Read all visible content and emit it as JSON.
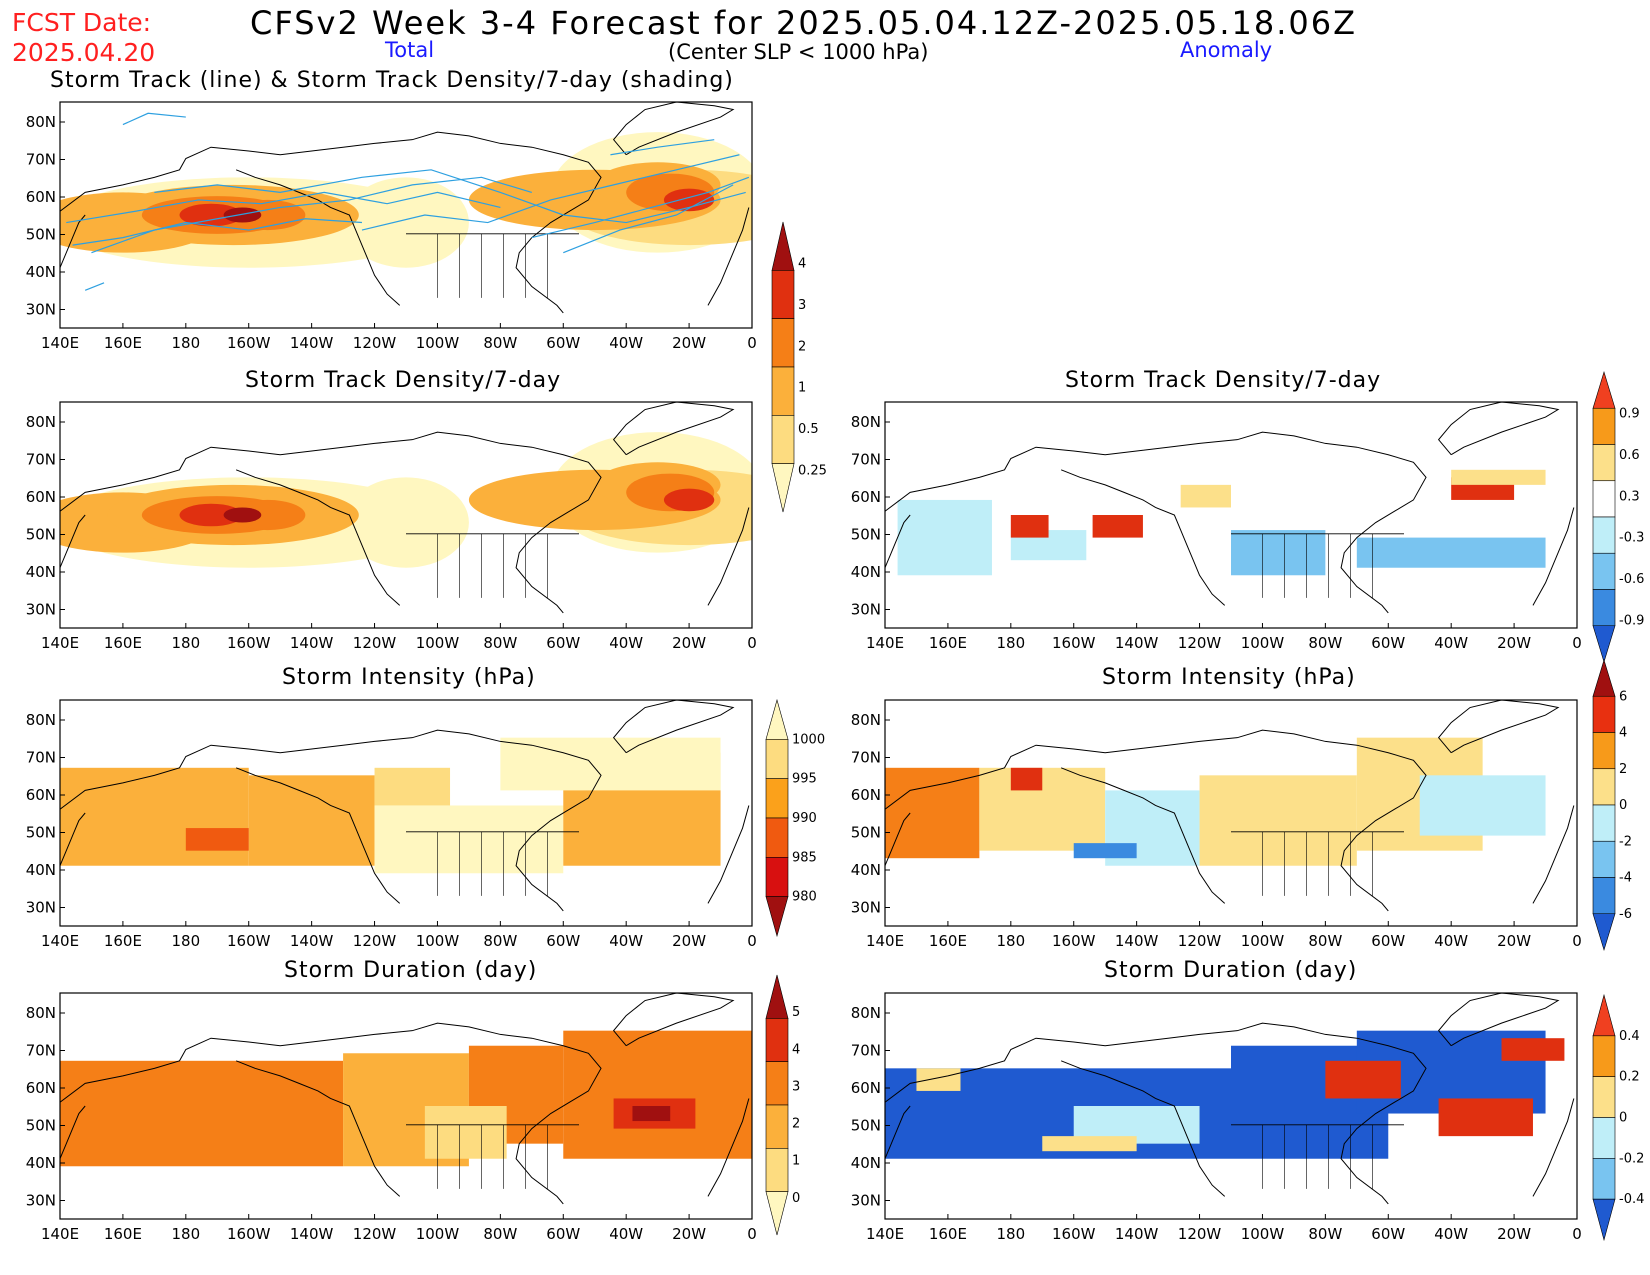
{
  "header": {
    "fcst_label": "FCST Date:",
    "fcst_date": "2025.04.20",
    "title": "CFSv2 Week 3-4 Forecast for 2025.05.04.12Z-2025.05.18.06Z",
    "subtitle": "(Center SLP < 1000 hPa)",
    "total_label": "Total",
    "anomaly_label": "Anomaly"
  },
  "axes": {
    "lon_labels": [
      "140E",
      "160E",
      "180",
      "160W",
      "140W",
      "120W",
      "100W",
      "80W",
      "60W",
      "40W",
      "20W",
      "0"
    ],
    "lat_labels": [
      "80N",
      "70N",
      "60N",
      "50N",
      "40N",
      "30N"
    ]
  },
  "panels": {
    "track": {
      "title": "Storm Track (line) & Storm Track Density/7-day (shading)"
    },
    "density_total": {
      "title": "Storm Track Density/7-day"
    },
    "density_anom": {
      "title": "Storm Track Density/7-day"
    },
    "intensity_total": {
      "title": "Storm Intensity (hPa)"
    },
    "intensity_anom": {
      "title": "Storm Intensity (hPa)"
    },
    "duration_total": {
      "title": "Storm Duration (day)"
    },
    "duration_anom": {
      "title": "Storm Duration (day)"
    }
  },
  "colorbars": {
    "density_total": {
      "labels": [
        "4",
        "3",
        "2",
        "1",
        "0.5",
        "0.25"
      ],
      "colors": [
        "#a01010",
        "#e03010",
        "#f57f17",
        "#fbb03b",
        "#fddc80",
        "#fff7c0"
      ]
    },
    "density_anom": {
      "labels": [
        "0.9",
        "0.6",
        "0.3",
        "-0.3",
        "-0.6",
        "-0.9"
      ],
      "colors": [
        "#f04020",
        "#f79a1a",
        "#fce08a",
        "#ffffff",
        "#bfeef8",
        "#79c4f0",
        "#3a8ae0",
        "#1f5ad0"
      ]
    },
    "intensity_total": {
      "labels": [
        "1000",
        "995",
        "990",
        "985",
        "980"
      ],
      "colors": [
        "#fff7c0",
        "#fddc80",
        "#fba11b",
        "#f05a10",
        "#d81010",
        "#a01010"
      ]
    },
    "intensity_anom": {
      "labels": [
        "6",
        "4",
        "2",
        "0",
        "-2",
        "-4",
        "-6"
      ],
      "colors": [
        "#a01010",
        "#e83010",
        "#f79a1a",
        "#fce08a",
        "#bfeef8",
        "#79c4f0",
        "#3a8ae0",
        "#1f5ad0"
      ]
    },
    "duration_total": {
      "labels": [
        "5",
        "4",
        "3",
        "2",
        "1",
        "0"
      ],
      "colors": [
        "#a01010",
        "#e03010",
        "#f57f17",
        "#fbb03b",
        "#fddc80",
        "#fff7c0"
      ]
    },
    "duration_anom": {
      "labels": [
        "0.4",
        "0.2",
        "0",
        "-0.2",
        "-0.4"
      ],
      "colors": [
        "#f04020",
        "#f79a1a",
        "#fce08a",
        "#bfeef8",
        "#79c4f0",
        "#1f5ad0"
      ]
    }
  },
  "colors": {
    "track_lines": "#2ea0e0",
    "coast": "#000000"
  }
}
